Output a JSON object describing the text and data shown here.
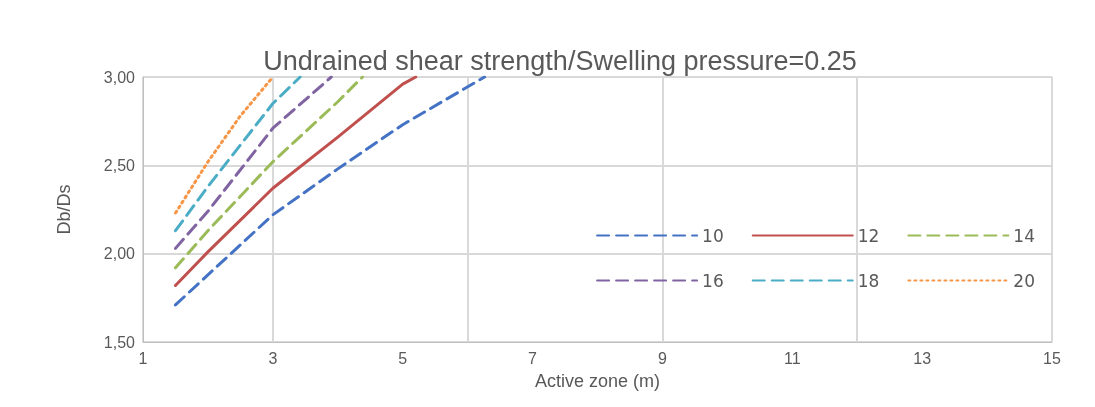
{
  "chart_data": {
    "type": "line",
    "title": "Undrained shear strength/Swelling pressure=0.25",
    "xlabel": "Active zone (m)",
    "ylabel": "Db/Ds",
    "xlim": [
      1,
      15
    ],
    "xticks": [
      1,
      3,
      5,
      7,
      9,
      11,
      13,
      15
    ],
    "ylim": [
      1.5,
      3.0
    ],
    "yticks": [
      {
        "value": 1.5,
        "label": "1,50"
      },
      {
        "value": 2.0,
        "label": "2,00"
      },
      {
        "value": 2.5,
        "label": "2,50"
      },
      {
        "value": 3.0,
        "label": "3,00"
      }
    ],
    "grid": true,
    "legend": "right",
    "marker": "none",
    "series": [
      {
        "name": "10",
        "color": "#4472c4",
        "line_style": "dashed",
        "x": [
          1.5,
          2,
          3,
          4,
          5,
          6.26
        ],
        "values": [
          1.71,
          1.88,
          2.22,
          2.48,
          2.73,
          3.0
        ]
      },
      {
        "name": "12",
        "color": "#c0504d",
        "line_style": "solid",
        "x": [
          1.5,
          2,
          3,
          4,
          5,
          5.2
        ],
        "values": [
          1.82,
          2.01,
          2.37,
          2.66,
          2.96,
          3.0
        ]
      },
      {
        "name": "14",
        "color": "#9bbb59",
        "line_style": "dashed",
        "x": [
          1.5,
          2,
          3,
          4,
          4.38
        ],
        "values": [
          1.92,
          2.13,
          2.52,
          2.86,
          3.0
        ]
      },
      {
        "name": "16",
        "color": "#8064a2",
        "line_style": "dashed",
        "x": [
          1.5,
          2,
          3,
          3.9
        ],
        "values": [
          2.03,
          2.24,
          2.71,
          3.0
        ]
      },
      {
        "name": "18",
        "color": "#4bacc6",
        "line_style": "dashed",
        "x": [
          1.5,
          2,
          3,
          3.42
        ],
        "values": [
          2.13,
          2.38,
          2.85,
          3.0
        ]
      },
      {
        "name": "20",
        "color": "#f79646",
        "line_style": "dotted",
        "x": [
          1.5,
          2,
          2.5,
          3.0
        ],
        "values": [
          2.23,
          2.52,
          2.78,
          3.0
        ]
      }
    ]
  }
}
